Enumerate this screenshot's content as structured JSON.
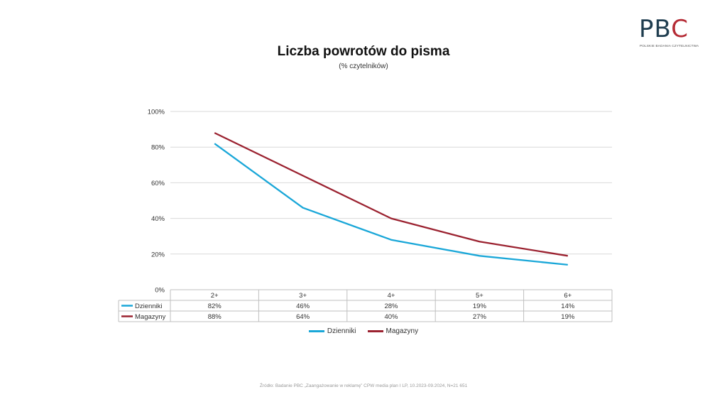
{
  "logo": {
    "letters": [
      "P",
      "B",
      "C"
    ],
    "tagline": "POLSKIE BADANIA CZYTELNICTWA",
    "colors": {
      "dark": "#1f3d4f",
      "red": "#b52b35"
    }
  },
  "title": "Liczba powrotów do pisma",
  "subtitle": "(% czytelników)",
  "source": "Źródło: Badanie PBC „Zaangażowanie w reklamę” CPW media plan I LP, 10.2023-09.2024, N=21 651",
  "chart_data": {
    "type": "line",
    "categories": [
      "2+",
      "3+",
      "4+",
      "5+",
      "6+"
    ],
    "series": [
      {
        "name": "Dzienniki",
        "color": "#1aa7d8",
        "values": [
          82,
          46,
          28,
          19,
          14
        ],
        "labels": [
          "82%",
          "46%",
          "28%",
          "19%",
          "14%"
        ]
      },
      {
        "name": "Magazyny",
        "color": "#9b2230",
        "values": [
          88,
          64,
          40,
          27,
          19
        ],
        "labels": [
          "88%",
          "64%",
          "40%",
          "27%",
          "19%"
        ]
      }
    ],
    "ylim": [
      0,
      100
    ],
    "yticks": [
      0,
      20,
      40,
      60,
      80,
      100
    ],
    "ytick_labels": [
      "0%",
      "20%",
      "40%",
      "60%",
      "80%",
      "100%"
    ],
    "grid": true,
    "data_table": true,
    "legend": "bottom-center"
  }
}
